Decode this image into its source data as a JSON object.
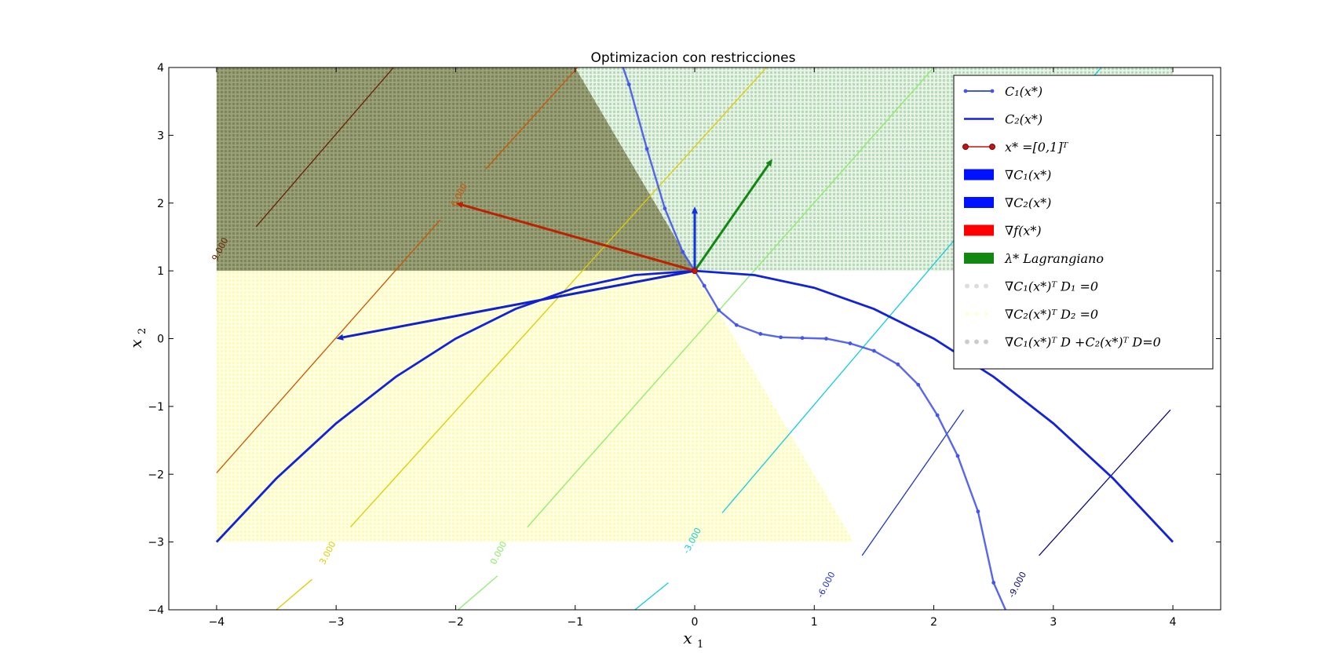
{
  "chart_data": {
    "type": "line",
    "title": "Optimizacion con restricciones",
    "xlabel": "x_1",
    "ylabel": "x_2",
    "xlim": [
      -4.4,
      4.4
    ],
    "ylim": [
      -4,
      4
    ],
    "xticks": [
      -4,
      -3,
      -2,
      -1,
      0,
      1,
      2,
      3,
      4
    ],
    "yticks": [
      -4,
      -3,
      -2,
      -1,
      0,
      1,
      2,
      3,
      4
    ],
    "xtick_labels": [
      "−4",
      "−3",
      "−2",
      "−1",
      "0",
      "1",
      "2",
      "3",
      "4"
    ],
    "ytick_labels": [
      "−4",
      "−3",
      "−2",
      "−1",
      "0",
      "1",
      "2",
      "3",
      "4"
    ],
    "grid": false,
    "legend_position": "top-right",
    "legend": [
      {
        "label": "C₁(x*)",
        "kind": "line-dots",
        "color": "#4455ee"
      },
      {
        "label": "C₂(x*)",
        "kind": "line",
        "color": "#1122dd"
      },
      {
        "label": "x* =[0,1]ᵀ",
        "kind": "line-markers",
        "color": "#cc1111"
      },
      {
        "label": "∇C₁(x*)",
        "kind": "patch",
        "color": "#0011ff"
      },
      {
        "label": "∇C₂(x*)",
        "kind": "patch",
        "color": "#0011ff"
      },
      {
        "label": "∇f(x*)",
        "kind": "patch",
        "color": "#ff0000"
      },
      {
        "label": "λ*      Lagrangiano",
        "kind": "patch",
        "color": "#118811"
      },
      {
        "label": "∇C₁(x*)ᵀ D₁ =0",
        "kind": "dots",
        "color": "#dddddd"
      },
      {
        "label": "∇C₂(x*)ᵀ D₂ =0",
        "kind": "dots",
        "color": "#ffffdd"
      },
      {
        "label": "∇C₁(x*)ᵀ D +C₂(x*)ᵀ D=0",
        "kind": "dots",
        "color": "#cccccc"
      }
    ],
    "series": [
      {
        "name": "C₁(x*)",
        "x": [
          -0.6,
          -0.55,
          -0.4,
          -0.25,
          -0.1,
          0.0,
          0.08,
          0.2,
          0.35,
          0.55,
          0.72,
          0.9,
          1.1,
          1.3,
          1.5,
          1.7,
          1.87,
          2.03,
          2.2,
          2.37,
          2.5,
          2.6
        ],
        "y": [
          4.0,
          3.75,
          2.8,
          1.92,
          1.28,
          1.0,
          0.78,
          0.42,
          0.2,
          0.07,
          0.02,
          0.01,
          0.0,
          -0.07,
          -0.18,
          -0.38,
          -0.68,
          -1.13,
          -1.73,
          -2.55,
          -3.6,
          -4.0
        ],
        "color": "#4455ee"
      },
      {
        "name": "C₂(x*)",
        "x": [
          -4,
          -3.5,
          -3,
          -2.5,
          -2,
          -1.5,
          -1,
          -0.5,
          0,
          0.5,
          1,
          1.5,
          2,
          2.5,
          3,
          3.5,
          4
        ],
        "y": [
          -3,
          -2.0625,
          -1.25,
          -0.5625,
          0,
          0.4375,
          0.75,
          0.9375,
          1,
          0.9375,
          0.75,
          0.4375,
          0,
          -0.5625,
          -1.25,
          -2.0625,
          -3
        ],
        "color": "#1122dd"
      }
    ],
    "point": {
      "name": "x* =[0,1]ᵀ",
      "x": 0,
      "y": 1
    },
    "arrows": [
      {
        "name": "∇C₁(x*)",
        "from": [
          0,
          1
        ],
        "to": [
          0,
          1.95
        ],
        "color": "#1133dd"
      },
      {
        "name": "∇C₂(x*)",
        "from": [
          0,
          1
        ],
        "to": [
          -3,
          0.0
        ],
        "color": "#1122cc"
      },
      {
        "name": "∇f(x*)",
        "from": [
          0,
          1
        ],
        "to": [
          -2.0,
          2.0
        ],
        "color": "#bb2200"
      },
      {
        "name": "λ*",
        "from": [
          0,
          1
        ],
        "to": [
          0.65,
          2.65
        ],
        "color": "#118811"
      }
    ],
    "contours": [
      {
        "level": "9.000",
        "color": "#662200",
        "segments": [
          [
            [
              -3.67,
              1.65
            ],
            [
              -2.52,
              4.0
            ]
          ]
        ],
        "label_at": [
          -3.95,
          1.3
        ]
      },
      {
        "level": "6.000",
        "color": "#cc5500",
        "segments": [
          [
            [
              -1.75,
              2.5
            ],
            [
              -0.98,
              4.0
            ]
          ],
          [
            [
              -2.13,
              1.75
            ],
            [
              -4.0,
              -1.98
            ]
          ]
        ],
        "label_at": [
          -1.95,
          2.1
        ]
      },
      {
        "level": "3.000",
        "color": "#ddcc00",
        "segments": [
          [
            [
              0.6,
              4.0
            ],
            [
              -2.88,
              -2.78
            ]
          ],
          [
            [
              -3.5,
              -4.0
            ],
            [
              -3.2,
              -3.55
            ]
          ]
        ],
        "label_at": [
          -3.05,
          -3.18
        ]
      },
      {
        "level": "0.000",
        "color": "#88ee66",
        "segments": [
          [
            [
              2.0,
              4.0
            ],
            [
              -1.4,
              -2.78
            ]
          ],
          [
            [
              -1.98,
              -4.0
            ],
            [
              -1.65,
              -3.5
            ]
          ]
        ],
        "label_at": [
          -1.62,
          -3.18
        ]
      },
      {
        "level": "-3.000",
        "color": "#11ccdd",
        "segments": [
          [
            [
              3.4,
              4.0
            ],
            [
              0.23,
              -2.57
            ]
          ],
          [
            [
              -0.5,
              -4.0
            ],
            [
              -0.22,
              -3.6
            ]
          ]
        ],
        "label_at": [
          0.0,
          -3.0
        ]
      },
      {
        "level": "-6.000",
        "color": "#2233cc",
        "segments": [
          [
            [
              2.25,
              -1.05
            ],
            [
              1.4,
              -3.2
            ]
          ]
        ],
        "label_at": [
          1.12,
          -3.65
        ]
      },
      {
        "level": "-9.000",
        "color": "#0a0a80",
        "segments": [
          [
            [
              3.98,
              -1.05
            ],
            [
              2.88,
              -3.2
            ]
          ]
        ],
        "label_at": [
          2.72,
          -3.65
        ]
      }
    ],
    "regions": [
      {
        "name": "∇C₁(x*)ᵀ D₁ =0",
        "color": "#bfe0bf",
        "polygon": [
          [
            -4,
            1
          ],
          [
            -4,
            4
          ],
          [
            4,
            4
          ],
          [
            4,
            1
          ]
        ]
      },
      {
        "name": "∇C₂(x*)ᵀ D₂ =0",
        "color": "#ffffc8",
        "polygon": [
          [
            -4,
            -3
          ],
          [
            -4,
            1
          ],
          [
            0,
            1
          ],
          [
            1.33,
            -3
          ]
        ]
      },
      {
        "name": "∇C₁(x*)ᵀ D +C₂(x*)ᵀ D=0",
        "color": "#8e9468",
        "polygon": [
          [
            -4,
            1
          ],
          [
            -4,
            4
          ],
          [
            -1.0,
            4
          ],
          [
            0,
            1
          ]
        ]
      }
    ]
  }
}
